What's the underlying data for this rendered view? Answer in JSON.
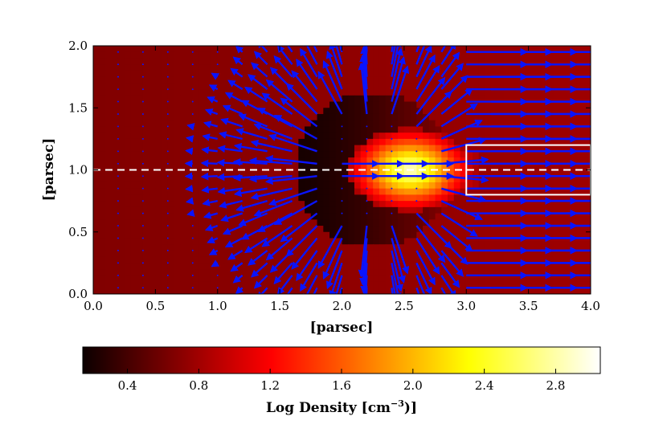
{
  "chart_data": {
    "type": "heatmap",
    "xlabel": "[parsec]",
    "ylabel": "[parsec]",
    "xlim": [
      0.0,
      4.0
    ],
    "ylim": [
      0.0,
      2.0
    ],
    "x_ticks": [
      "0.0",
      "0.5",
      "1.0",
      "1.5",
      "2.0",
      "2.5",
      "3.0",
      "3.5",
      "4.0"
    ],
    "y_ticks": [
      "0.0",
      "0.5",
      "1.0",
      "1.5",
      "2.0"
    ],
    "colorbar": {
      "label": "Log Density [cm^-3]",
      "label_text": "Log Density [cm",
      "label_sup": "−3",
      "label_end": ")]",
      "range": [
        0.15,
        3.05
      ],
      "ticks": [
        "0.4",
        "0.8",
        "1.2",
        "1.6",
        "2.0",
        "2.4",
        "2.8"
      ],
      "colormap": "hot"
    },
    "dense_core": {
      "center": [
        2.55,
        1.0
      ],
      "log_density_peak": 3.0
    },
    "shell": {
      "center": [
        2.25,
        1.0
      ],
      "radius": 0.62,
      "log_density": 0.2
    },
    "background_log_density": 0.7,
    "cutline_y": 1.0,
    "box": {
      "x": [
        3.0,
        4.0
      ],
      "y": [
        0.8,
        1.2
      ]
    },
    "vectors_color": "#0a14ff",
    "line_color": "#ffffff"
  }
}
